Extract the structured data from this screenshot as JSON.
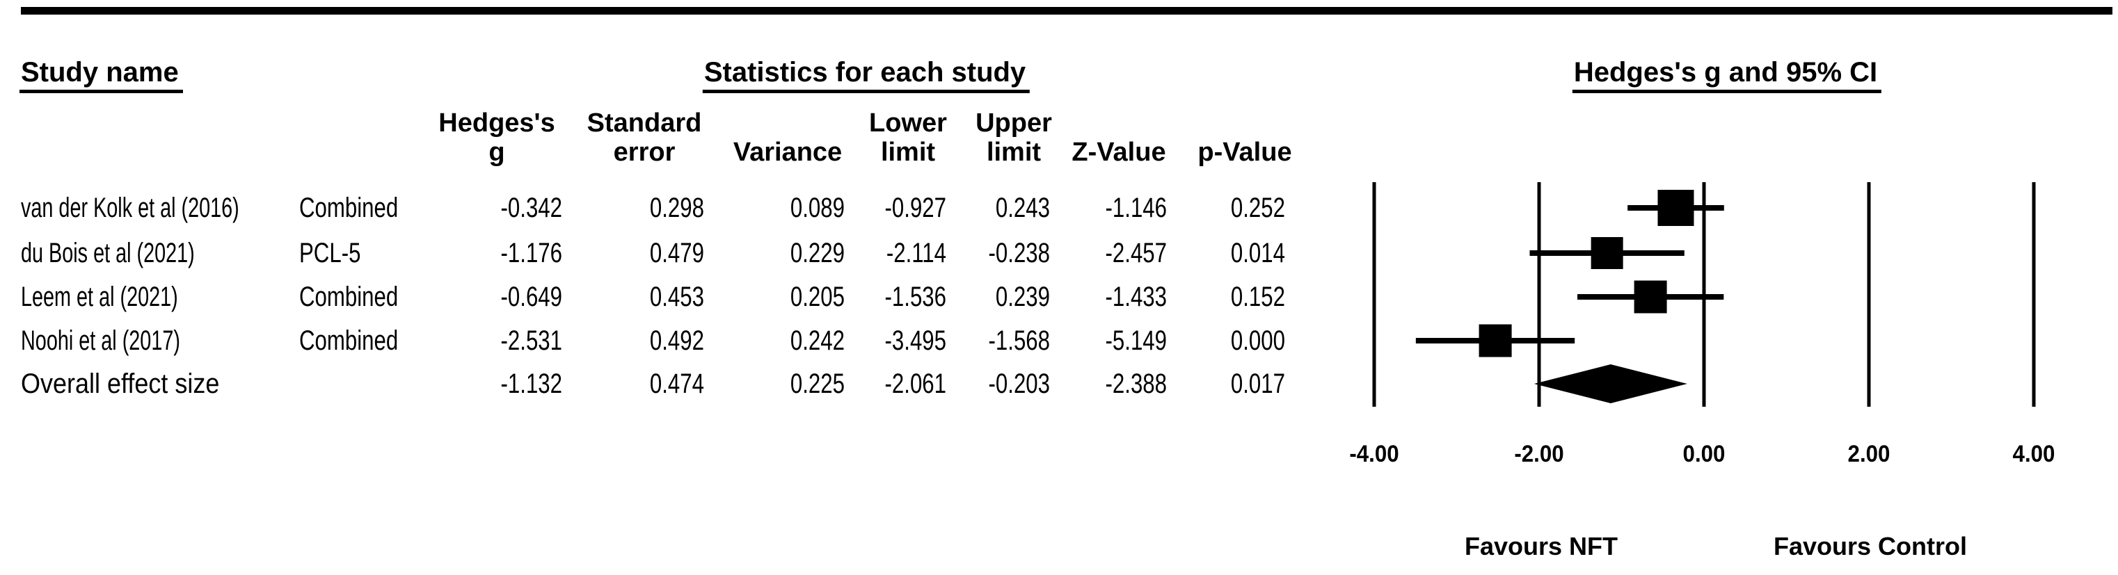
{
  "figure": {
    "background": "#ffffff",
    "ink": "#000000"
  },
  "table": {
    "title_study": "Study name",
    "title_stats": "Statistics for each study",
    "columns": [
      [
        "Hedges's",
        "g"
      ],
      [
        "Standard",
        "error"
      ],
      [
        "",
        "Variance"
      ],
      [
        "Lower",
        "limit"
      ],
      [
        "Upper",
        "limit"
      ],
      [
        "",
        "Z-Value"
      ],
      [
        "",
        "p-Value"
      ]
    ],
    "rows": [
      {
        "study": "van der Kolk et al (2016)",
        "outcome": "Combined",
        "values": [
          "-0.342",
          "0.298",
          "0.089",
          "-0.927",
          "0.243",
          "-1.146",
          "0.252"
        ]
      },
      {
        "study": "du Bois et al (2021)",
        "outcome": "PCL-5",
        "values": [
          "-1.176",
          "0.479",
          "0.229",
          "-2.114",
          "-0.238",
          "-2.457",
          "0.014"
        ]
      },
      {
        "study": "Leem et al (2021)",
        "outcome": "Combined",
        "values": [
          "-0.649",
          "0.453",
          "0.205",
          "-1.536",
          "0.239",
          "-1.433",
          "0.152"
        ]
      },
      {
        "study": "Noohi et al (2017)",
        "outcome": "Combined",
        "values": [
          "-2.531",
          "0.492",
          "0.242",
          "-3.495",
          "-1.568",
          "-5.149",
          "0.000"
        ]
      },
      {
        "study": "Overall effect size",
        "outcome": "",
        "values": [
          "-1.132",
          "0.474",
          "0.225",
          "-2.061",
          "-0.203",
          "-2.388",
          "0.017"
        ]
      }
    ]
  },
  "chart_data": {
    "type": "forest",
    "title": "Hedges's g and 95% CI",
    "xlabel": "",
    "xlim": [
      -4,
      4
    ],
    "x_ticks": [
      -4,
      -2,
      0,
      2,
      4
    ],
    "x_tick_labels": [
      "-4.00",
      "-2.00",
      "0.00",
      "2.00",
      "4.00"
    ],
    "grid": "vertical-lines-at-ticks",
    "marker_color": "#000000",
    "studies": [
      {
        "name": "van der Kolk et al (2016)",
        "outcome": "Combined",
        "g": -0.342,
        "lower": -0.927,
        "upper": 0.243
      },
      {
        "name": "du Bois et al (2021)",
        "outcome": "PCL-5",
        "g": -1.176,
        "lower": -2.114,
        "upper": -0.238
      },
      {
        "name": "Leem et al (2021)",
        "outcome": "Combined",
        "g": -0.649,
        "lower": -1.536,
        "upper": 0.239
      },
      {
        "name": "Noohi et al (2017)",
        "outcome": "Combined",
        "g": -2.531,
        "lower": -3.495,
        "upper": -1.568
      }
    ],
    "overall": {
      "name": "Overall effect size",
      "g": -1.132,
      "lower": -2.061,
      "upper": -0.203
    },
    "favours_left": "Favours NFT",
    "favours_right": "Favours Control"
  }
}
